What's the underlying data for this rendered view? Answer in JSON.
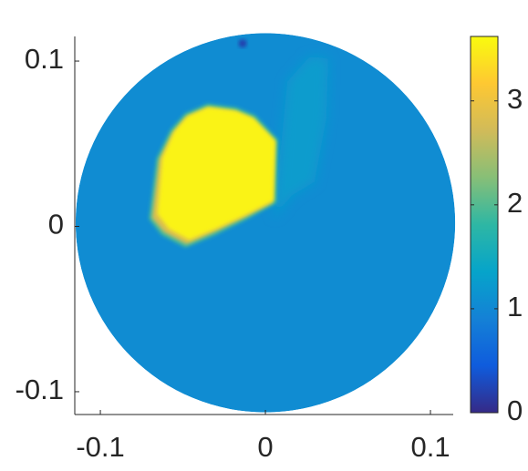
{
  "chart_data": {
    "type": "heatmap",
    "xlim": [
      -0.1155,
      0.1138
    ],
    "ylim": [
      -0.1138,
      0.1149
    ],
    "xticks": [
      -0.1,
      0,
      0.1
    ],
    "yticks": [
      -0.1,
      0,
      0.1
    ],
    "colorbar": {
      "clim": [
        0,
        3.62
      ],
      "ticks": [
        0,
        1,
        2,
        3
      ]
    },
    "colormap": [
      "#352a87",
      "#0f5cdd",
      "#1481d6",
      "#06a4ca",
      "#2eb7a4",
      "#87bf77",
      "#d1bb59",
      "#fec832",
      "#f9fb0e"
    ],
    "field": {
      "center": [
        0,
        0.0022
      ],
      "radius": 0.115,
      "value": 1.05,
      "regions": [
        {
          "value": 1.25,
          "polygon": [
            [
              0.0133,
              0.0876
            ],
            [
              0.0271,
              0.103
            ],
            [
              0.0381,
              0.1014
            ],
            [
              0.037,
              0.0656
            ],
            [
              0.0298,
              0.027
            ],
            [
              0.016,
              0.0187
            ],
            [
              0.005,
              0.005
            ]
          ]
        },
        {
          "value": 1.9,
          "polygon": [
            [
              -0.0575,
              0.0585
            ],
            [
              -0.0485,
              0.0685
            ],
            [
              -0.035,
              0.0742
            ],
            [
              -0.0178,
              0.072
            ],
            [
              -0.0062,
              0.0672
            ],
            [
              0.0075,
              0.0525
            ],
            [
              0.0065,
              0.0142
            ],
            [
              -0.011,
              0.0045
            ],
            [
              -0.031,
              -0.0055
            ],
            [
              -0.0485,
              -0.0128
            ],
            [
              -0.063,
              -0.0052
            ],
            [
              -0.0705,
              0.0045
            ],
            [
              -0.066,
              0.041
            ]
          ]
        },
        {
          "value": 2.8,
          "polygon": [
            [
              -0.0565,
              0.0565
            ],
            [
              -0.048,
              0.0665
            ],
            [
              -0.0352,
              0.072
            ],
            [
              -0.0185,
              0.0698
            ],
            [
              -0.0078,
              0.0652
            ],
            [
              0.0055,
              0.0515
            ],
            [
              0.0045,
              0.0145
            ],
            [
              -0.012,
              0.0058
            ],
            [
              -0.0312,
              -0.0035
            ],
            [
              -0.0478,
              -0.0108
            ],
            [
              -0.0615,
              -0.0035
            ],
            [
              -0.0688,
              0.005
            ],
            [
              -0.0645,
              0.0405
            ]
          ]
        },
        {
          "value": 3.55,
          "polygon": [
            [
              -0.0553,
              0.0573
            ],
            [
              -0.0472,
              0.0667
            ],
            [
              -0.0345,
              0.0722
            ],
            [
              -0.018,
              0.07
            ],
            [
              -0.0072,
              0.0656
            ],
            [
              0.0061,
              0.0518
            ],
            [
              0.005,
              0.0155
            ],
            [
              -0.0112,
              0.0072
            ],
            [
              -0.03,
              -0.0015
            ],
            [
              -0.0462,
              -0.0082
            ],
            [
              -0.0585,
              -0.0015
            ],
            [
              -0.0655,
              0.0075
            ],
            [
              -0.0625,
              0.0415
            ]
          ]
        }
      ],
      "spots": [
        {
          "value": 0.2,
          "center": [
            -0.0138,
            0.1107
          ],
          "radius": 0.0025
        }
      ]
    }
  }
}
